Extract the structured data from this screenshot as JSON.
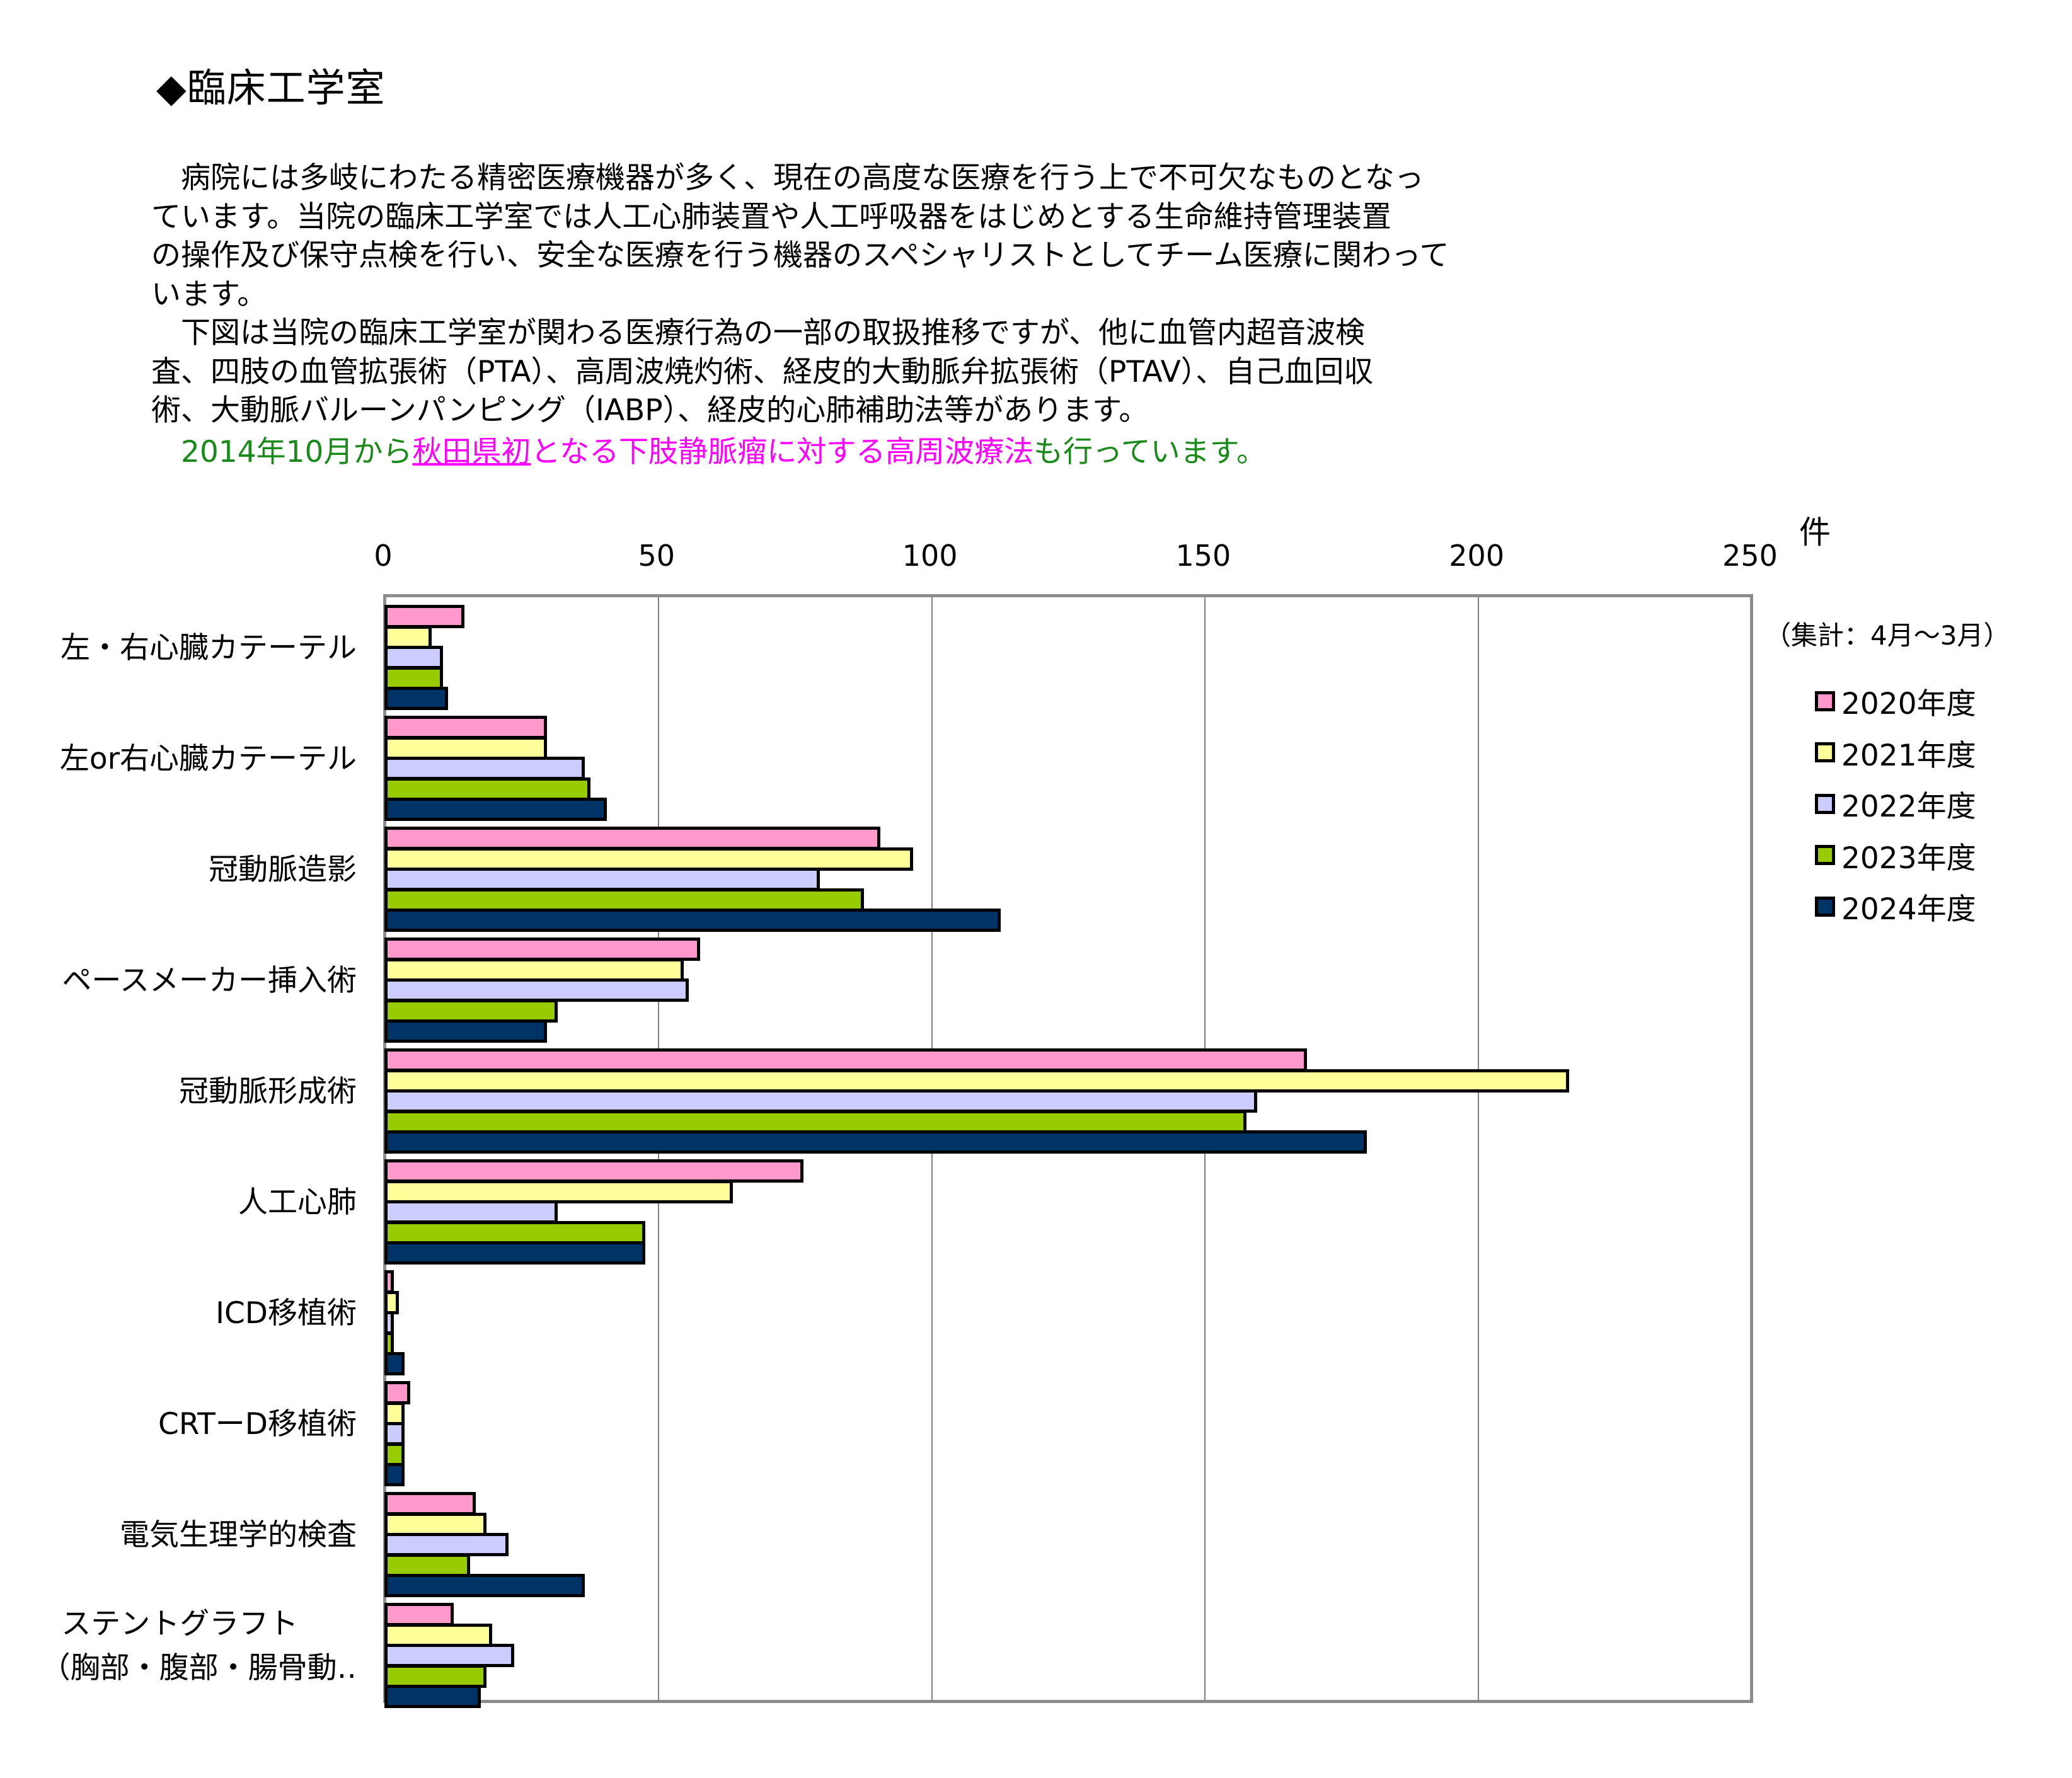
{
  "section": {
    "title": "◆臨床工学室",
    "paragraph_lines": [
      "　病院には多岐にわたる精密医療機器が多く、現在の高度な医療を行う上で不可欠なものとなっ",
      "ています。当院の臨床工学室では人工心肺装置や人工呼吸器をはじめとする生命維持管理装置",
      "の操作及び保守点検を行い、安全な医療を行う機器のスペシャリストとしてチーム医療に関わって",
      "います。",
      "　下図は当院の臨床工学室が関わる医療行為の一部の取扱推移ですが、他に血管内超音波検",
      "査、四肢の血管拡張術（PTA）、高周波焼灼術、経皮的大動脈弁拡張術（PTAV）、自己血回収",
      "術、大動脈バルーンパンピング（IABP）、経皮的心肺補助法等があります。"
    ],
    "highlight": {
      "prefix": "　2014年10月から",
      "link": "秋田県初",
      "emphasis": "となる下肢静脈瘤に対する高周波療法",
      "suffix": "も行っています。"
    }
  },
  "colors": {
    "highlight_green": "#1a8a1a",
    "highlight_magenta": "#ff00ff"
  },
  "chart_data": {
    "type": "bar",
    "orientation": "horizontal",
    "title": "",
    "xlabel": "件",
    "ylabel": "",
    "xlim": [
      0,
      250
    ],
    "x_ticks": [
      "0",
      "50",
      "100",
      "150",
      "200",
      "250"
    ],
    "grid": true,
    "legend_position": "right",
    "note": "（集計：4月～3月）",
    "categories": [
      "左・右心臓カテーテル",
      "左or右心臓カテーテル",
      "冠動脈造影",
      "ペースメーカー挿入術",
      "冠動脈形成術",
      "人工心肺",
      "ICD移植術",
      "CRTーD移植術",
      "電気生理学的検査",
      "ステントグラフト（胸部・腹部・腸骨動‥"
    ],
    "category_lines": [
      [
        "左・右心臓カテーテル"
      ],
      [
        "左or右心臓カテーテル"
      ],
      [
        "冠動脈造影"
      ],
      [
        "ペースメーカー挿入術"
      ],
      [
        "冠動脈形成術"
      ],
      [
        "人工心肺"
      ],
      [
        "ICD移植術"
      ],
      [
        "CRTーD移植術"
      ],
      [
        "電気生理学的検査"
      ],
      [
        "ステントグラフト",
        "（胸部・腹部・腸骨動‥"
      ]
    ],
    "series": [
      {
        "name": "2020年度",
        "color": "#ff99cc",
        "values": [
          14,
          29,
          90,
          57,
          168,
          76,
          1,
          4,
          16,
          12
        ]
      },
      {
        "name": "2021年度",
        "color": "#ffff99",
        "values": [
          8,
          29,
          96,
          54,
          216,
          63,
          2,
          3,
          18,
          19
        ]
      },
      {
        "name": "2022年度",
        "color": "#ccccff",
        "values": [
          10,
          36,
          79,
          55,
          159,
          31,
          1,
          3,
          22,
          23
        ]
      },
      {
        "name": "2023年度",
        "color": "#99cc00",
        "values": [
          10,
          37,
          87,
          31,
          157,
          47,
          1,
          3,
          15,
          18
        ]
      },
      {
        "name": "2024年度",
        "color": "#003366",
        "values": [
          11,
          40,
          112,
          29,
          179,
          47,
          3,
          3,
          36,
          17
        ]
      }
    ]
  }
}
